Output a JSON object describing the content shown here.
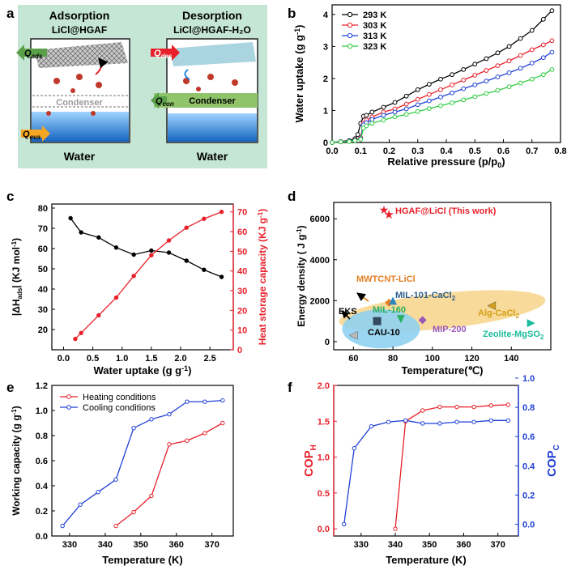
{
  "panel_labels": {
    "a": "a",
    "b": "b",
    "c": "c",
    "d": "d",
    "e": "e",
    "f": "f"
  },
  "schematic": {
    "left_title": "Adsorption",
    "left_subtitle": "LiCl@HGAF",
    "right_title": "Desorption",
    "right_subtitle": "LiCl@HGAF-H₂O",
    "q_ads": "Q",
    "q_ads_sub": "ads",
    "q_eva": "Q",
    "q_eva_sub": "eva",
    "q_des": "Q",
    "q_des_sub": "des",
    "q_con": "Q",
    "q_con_sub": "con",
    "condenser_left": "Condenser",
    "condenser_right": "Condenser",
    "water_left": "Water",
    "water_right": "Water",
    "colors": {
      "background": "#bfe3cf",
      "ads_arrow": "#5aa04a",
      "des_arrow": "#e8202a",
      "eva_arrow": "#f5a623",
      "con_bar": "#8fc46a",
      "water": "#1e88e5",
      "vapor": "#c0392b"
    }
  },
  "chart_data": [
    {
      "id": "b",
      "type": "line",
      "xlabel": "Relative pressure (p/p",
      "xlabel_sub": "0",
      "xlabel_end": ")",
      "ylabel": "Water uptake (g g",
      "ylabel_sup": "-1",
      "ylabel_end": ")",
      "xlim": [
        0.0,
        0.8
      ],
      "ylim": [
        0,
        4.3
      ],
      "xticks": [
        "0.0",
        "0.1",
        "0.2",
        "0.3",
        "0.4",
        "0.5",
        "0.6",
        "0.7",
        "0.8"
      ],
      "yticks": [
        "0",
        "1",
        "2",
        "3",
        "4"
      ],
      "series": [
        {
          "name": "293 K",
          "color": "#000000",
          "x": [
            0.0,
            0.03,
            0.06,
            0.08,
            0.09,
            0.1,
            0.11,
            0.12,
            0.14,
            0.18,
            0.22,
            0.26,
            0.3,
            0.34,
            0.38,
            0.42,
            0.46,
            0.5,
            0.54,
            0.58,
            0.62,
            0.66,
            0.7,
            0.74,
            0.77
          ],
          "y": [
            0.0,
            0.03,
            0.06,
            0.12,
            0.25,
            0.6,
            0.82,
            0.85,
            0.95,
            1.1,
            1.25,
            1.45,
            1.65,
            1.82,
            1.98,
            2.12,
            2.28,
            2.45,
            2.62,
            2.8,
            3.0,
            3.25,
            3.5,
            3.85,
            4.12
          ]
        },
        {
          "name": "303 K",
          "color": "#e8202a",
          "x": [
            0.0,
            0.03,
            0.06,
            0.08,
            0.1,
            0.11,
            0.12,
            0.14,
            0.18,
            0.22,
            0.26,
            0.3,
            0.34,
            0.38,
            0.42,
            0.46,
            0.5,
            0.54,
            0.58,
            0.62,
            0.66,
            0.7,
            0.74,
            0.77
          ],
          "y": [
            0.0,
            0.02,
            0.04,
            0.08,
            0.15,
            0.6,
            0.7,
            0.8,
            0.95,
            1.05,
            1.2,
            1.35,
            1.5,
            1.65,
            1.8,
            1.95,
            2.1,
            2.25,
            2.4,
            2.55,
            2.72,
            2.9,
            3.05,
            3.18
          ]
        },
        {
          "name": "313 K",
          "color": "#1f3fd6",
          "x": [
            0.0,
            0.03,
            0.06,
            0.08,
            0.1,
            0.11,
            0.12,
            0.14,
            0.18,
            0.22,
            0.26,
            0.3,
            0.34,
            0.38,
            0.42,
            0.46,
            0.5,
            0.54,
            0.58,
            0.62,
            0.66,
            0.7,
            0.74,
            0.77
          ],
          "y": [
            0.0,
            0.02,
            0.04,
            0.07,
            0.12,
            0.55,
            0.62,
            0.72,
            0.85,
            0.95,
            1.05,
            1.18,
            1.3,
            1.42,
            1.55,
            1.68,
            1.8,
            1.92,
            2.05,
            2.18,
            2.32,
            2.48,
            2.65,
            2.82
          ]
        },
        {
          "name": "323 K",
          "color": "#2ecc40",
          "x": [
            0.0,
            0.03,
            0.06,
            0.08,
            0.1,
            0.11,
            0.12,
            0.14,
            0.18,
            0.22,
            0.26,
            0.3,
            0.34,
            0.38,
            0.42,
            0.46,
            0.5,
            0.54,
            0.58,
            0.62,
            0.66,
            0.7,
            0.74,
            0.77
          ],
          "y": [
            0.0,
            0.02,
            0.03,
            0.06,
            0.1,
            0.45,
            0.52,
            0.6,
            0.7,
            0.8,
            0.88,
            0.97,
            1.06,
            1.15,
            1.24,
            1.33,
            1.43,
            1.53,
            1.63,
            1.74,
            1.86,
            1.98,
            2.12,
            2.28
          ]
        }
      ]
    },
    {
      "id": "c",
      "type": "line",
      "xlabel": "Water uptake (g g",
      "xlabel_sup": "-1",
      "xlabel_end": ")",
      "ylabel": "|ΔH",
      "ylabel_sub": "ads",
      "ylabel_end": "|  (KJ mol",
      "ylabel_sup": "-1",
      "ylabel_close": ")",
      "ylabel2": "Heat storage capacity  (KJ g",
      "ylabel2_sup": "-1",
      "ylabel2_end": ")",
      "xlim": [
        -0.2,
        2.9
      ],
      "ylim": [
        10,
        82
      ],
      "ylim2": [
        0,
        74
      ],
      "xticks": [
        "0.0",
        "0.5",
        "1.0",
        "1.5",
        "2.0",
        "2.5"
      ],
      "yticks": [
        "20",
        "30",
        "40",
        "50",
        "60",
        "70",
        "80"
      ],
      "yticks2": [
        "0",
        "10",
        "20",
        "30",
        "40",
        "50",
        "60",
        "70"
      ],
      "series": [
        {
          "name": "|ΔHads|",
          "color": "#000000",
          "x": [
            0.12,
            0.3,
            0.6,
            0.9,
            1.2,
            1.5,
            1.8,
            2.1,
            2.4,
            2.7
          ],
          "y": [
            75,
            68,
            65.5,
            60.5,
            57,
            59,
            58,
            54,
            49.5,
            46
          ]
        },
        {
          "name": "Heat storage capacity",
          "color": "#e8202a",
          "axis": "right",
          "x": [
            0.2,
            0.3,
            0.6,
            0.9,
            1.2,
            1.5,
            1.8,
            2.1,
            2.4,
            2.7
          ],
          "y": [
            5.5,
            8.5,
            17.5,
            26.5,
            37.5,
            48,
            55.5,
            62,
            66.5,
            70
          ]
        }
      ]
    },
    {
      "id": "d",
      "type": "scatter",
      "xlabel": "Temperature(℃)",
      "ylabel": "Energy density  ( J g",
      "ylabel_sup": "-1",
      "ylabel_end": ")",
      "xlim": [
        50,
        160
      ],
      "ylim": [
        -400,
        6800
      ],
      "xticks": [
        "60",
        "80",
        "100",
        "120",
        "140"
      ],
      "yticks": [
        "0",
        "2000",
        "4000",
        "6000"
      ],
      "legend": "HGAF@LiCl (This work)",
      "points": [
        {
          "name": "HGAF@LiCl",
          "x": 78,
          "y": 6200,
          "color": "#e8202a",
          "shape": "star"
        },
        {
          "name": "MWTCNT-LiCl",
          "x": 78,
          "y": 1900,
          "color": "#e67e22",
          "shape": "diamond"
        },
        {
          "name": "MIL-101-CaCl2",
          "x": 80,
          "y": 2000,
          "color": "#2e86c1",
          "shape": "triangle"
        },
        {
          "name": "MIL-160",
          "x": 84,
          "y": 1100,
          "color": "#27ae60",
          "shape": "tri-down"
        },
        {
          "name": "Alg-CaCl2",
          "x": 130,
          "y": 1750,
          "color": "#d4a017",
          "shape": "tri-left"
        },
        {
          "name": "Zeolite-MgSO2",
          "x": 150,
          "y": 900,
          "color": "#1abc9c",
          "shape": "tri-right"
        },
        {
          "name": "MIP-200",
          "x": 95,
          "y": 1050,
          "color": "#9b59b6",
          "shape": "diamond"
        },
        {
          "name": "CAU-10",
          "x": 72,
          "y": 1000,
          "color": "#34495e",
          "shape": "square"
        },
        {
          "name": "EKS",
          "x": 60,
          "y": 300,
          "color": "#bbbbbb",
          "shape": "tri-left"
        }
      ],
      "labels": [
        {
          "text": "MWTCNT-LiCl",
          "color": "#e67e22"
        },
        {
          "text": "MIL-101-CaCl",
          "sub": "2",
          "color": "#2e5d8a"
        },
        {
          "text": "MIL-160",
          "color": "#27ae60"
        },
        {
          "text": "Alg-CaCl",
          "sub": "2",
          "color": "#d4a017"
        },
        {
          "text": "EKS",
          "color": "#000000"
        },
        {
          "text": "CAU-10",
          "color": "#000000"
        },
        {
          "text": "MIP-200",
          "color": "#9b59b6"
        },
        {
          "text": "Zeolite-MgSO",
          "sub": "2",
          "color": "#1abc9c"
        }
      ],
      "regions": {
        "orange": "#f7d58a",
        "blue": "#8fd0f0"
      }
    },
    {
      "id": "e",
      "type": "line",
      "xlabel": "Temperature (K)",
      "ylabel": "Working capacity (g g",
      "ylabel_sup": "-1",
      "ylabel_end": ")",
      "xlim": [
        325,
        376
      ],
      "ylim": [
        0,
        1.2
      ],
      "xticks": [
        "330",
        "340",
        "350",
        "360",
        "370"
      ],
      "yticks": [
        "0.0",
        "0.2",
        "0.4",
        "0.6",
        "0.8",
        "1.0",
        "1.2"
      ],
      "series": [
        {
          "name": "Heating conditions",
          "color": "#e8202a",
          "x": [
            343,
            348,
            353,
            358,
            363,
            368,
            373
          ],
          "y": [
            0.08,
            0.19,
            0.32,
            0.73,
            0.76,
            0.82,
            0.9
          ]
        },
        {
          "name": "Cooling conditions",
          "color": "#1f3fd6",
          "x": [
            328,
            333,
            338,
            343,
            348,
            353,
            358,
            363,
            368,
            373
          ],
          "y": [
            0.08,
            0.25,
            0.35,
            0.45,
            0.86,
            0.93,
            0.97,
            1.07,
            1.07,
            1.08
          ]
        }
      ]
    },
    {
      "id": "f",
      "type": "line",
      "xlabel": "Temperature (K)",
      "ylabel": "COP",
      "ylabel_sub": "H",
      "ylabel2": "COP",
      "ylabel2_sub": "C",
      "xlim": [
        322,
        376
      ],
      "ylim": [
        -0.1,
        2.0
      ],
      "ylim2": [
        -0.08,
        0.95
      ],
      "xticks": [
        "330",
        "340",
        "350",
        "360",
        "370"
      ],
      "yticks": [
        "0.0",
        "0.5",
        "1.0",
        "1.5",
        "2.0"
      ],
      "yticks2": [
        "0.0",
        "0.2",
        "0.4",
        "0.6",
        "0.8",
        "1.0"
      ],
      "series": [
        {
          "name": "COPH",
          "color": "#e8202a",
          "x": [
            340,
            343,
            348,
            353,
            358,
            363,
            368,
            373
          ],
          "y": [
            0.0,
            1.5,
            1.65,
            1.7,
            1.7,
            1.7,
            1.72,
            1.73
          ]
        },
        {
          "name": "COPC",
          "color": "#1f3fd6",
          "axis": "right",
          "x": [
            325,
            328,
            333,
            338,
            343,
            348,
            353,
            358,
            363,
            368,
            373
          ],
          "y": [
            0.0,
            0.52,
            0.67,
            0.7,
            0.71,
            0.69,
            0.69,
            0.7,
            0.7,
            0.71,
            0.71
          ]
        }
      ]
    }
  ]
}
